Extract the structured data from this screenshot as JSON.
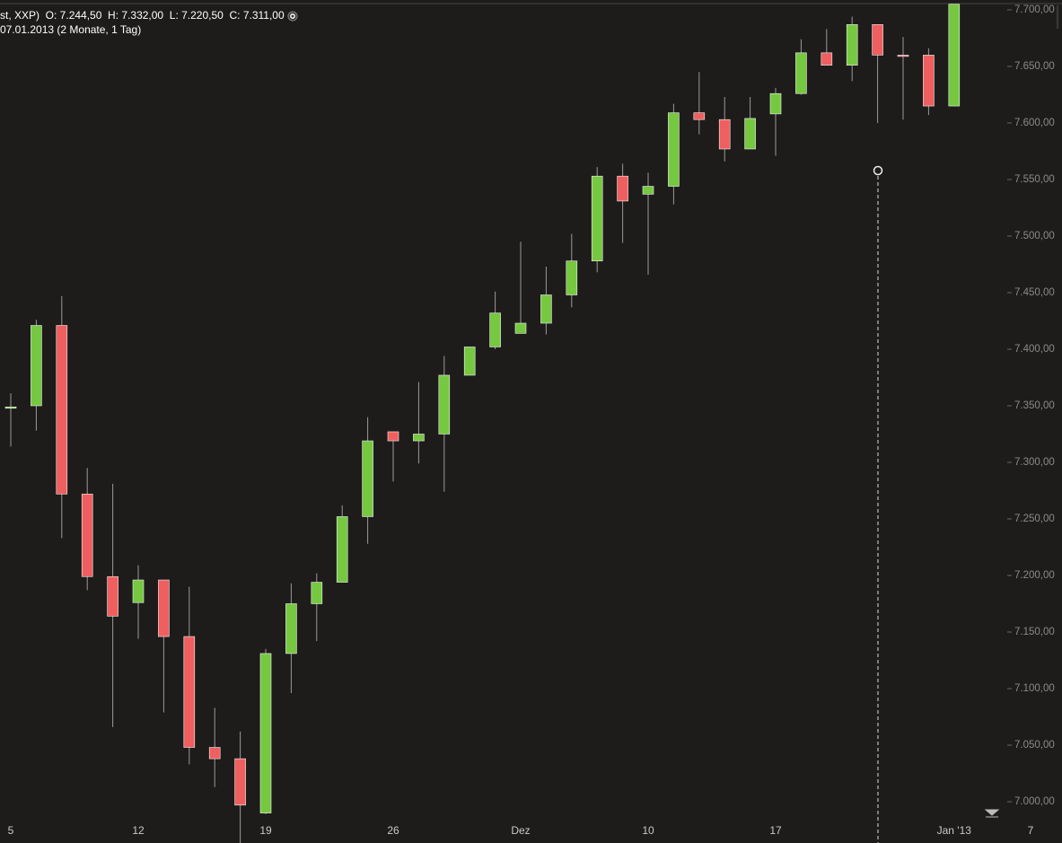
{
  "chart_data": {
    "type": "candlestick",
    "title": "st, XXP)  O: 7.244,50  H: 7.332,00  L: 7.220,50  C: 7.311,00",
    "subtitle": "07.01.2013 (2 Monate, 1 Tag)",
    "categories": [
      "5",
      null,
      null,
      null,
      null,
      "12",
      null,
      null,
      null,
      null,
      "19",
      null,
      null,
      null,
      null,
      "26",
      null,
      null,
      null,
      null,
      "Dez",
      null,
      null,
      null,
      null,
      "10",
      null,
      null,
      null,
      null,
      "17",
      null,
      null,
      null,
      null,
      null,
      null,
      "Jan '13",
      null,
      null,
      "7"
    ],
    "open": [
      7348,
      7350,
      7421,
      7272,
      7199,
      7176,
      7196,
      7146,
      7048,
      7038,
      6990,
      7131,
      7175,
      7194,
      7252,
      7327,
      7319,
      7325,
      7377,
      7402,
      7414,
      7423,
      7448,
      7478,
      7553,
      7537,
      7544,
      7609,
      7603,
      7577,
      7608,
      7626,
      7662,
      7651,
      7687,
      7660,
      7660,
      7615,
      null,
      null,
      null
    ],
    "high": [
      7361,
      7426,
      7447,
      7295,
      7281,
      7209,
      7196,
      7190,
      7083,
      7062,
      7135,
      7193,
      7202,
      7262,
      7340,
      7327,
      7371,
      7394,
      7402,
      7451,
      7495,
      7473,
      7502,
      7561,
      7564,
      7556,
      7617,
      7645,
      7623,
      7623,
      7631,
      7674,
      7683,
      7694,
      7687,
      7676,
      7666,
      7705,
      null,
      null,
      null
    ],
    "low": [
      7314,
      7328,
      7233,
      7187,
      7066,
      7144,
      7079,
      7033,
      7013,
      6960,
      6989,
      7096,
      7142,
      7194,
      7228,
      7283,
      7299,
      7274,
      7377,
      7400,
      7414,
      7413,
      7437,
      7468,
      7494,
      7466,
      7528,
      7590,
      7566,
      7577,
      7571,
      7625,
      7651,
      7637,
      7600,
      7603,
      7607,
      7615,
      null,
      null,
      null
    ],
    "close": [
      7349,
      7421,
      7272,
      7199,
      7164,
      7196,
      7146,
      7048,
      7038,
      6997,
      7131,
      7175,
      7194,
      7252,
      7319,
      7319,
      7325,
      7377,
      7402,
      7432,
      7423,
      7448,
      7478,
      7553,
      7531,
      7544,
      7609,
      7603,
      7577,
      7604,
      7626,
      7662,
      7651,
      7687,
      7660,
      7659,
      7615,
      7705,
      null,
      null,
      null
    ],
    "up_color": "#76c840",
    "down_color": "#ef5f5f",
    "ylim": [
      6963.5,
      7708.7
    ],
    "yticks": [
      {
        "value": 7000,
        "label": "7.000,00"
      },
      {
        "value": 7050,
        "label": "7.050,00"
      },
      {
        "value": 7100,
        "label": "7.100,00"
      },
      {
        "value": 7150,
        "label": "7.150,00"
      },
      {
        "value": 7200,
        "label": "7.200,00"
      },
      {
        "value": 7250,
        "label": "7.250,00"
      },
      {
        "value": 7300,
        "label": "7.300,00"
      },
      {
        "value": 7350,
        "label": "7.350,00"
      },
      {
        "value": 7400,
        "label": "7.400,00"
      },
      {
        "value": 7450,
        "label": "7.450,00"
      },
      {
        "value": 7500,
        "label": "7.500,00"
      },
      {
        "value": 7550,
        "label": "7.550,00"
      },
      {
        "value": 7600,
        "label": "7.600,00"
      },
      {
        "value": 7650,
        "label": "7.650,00"
      },
      {
        "value": 7700,
        "label": "7.700,00"
      }
    ]
  }
}
